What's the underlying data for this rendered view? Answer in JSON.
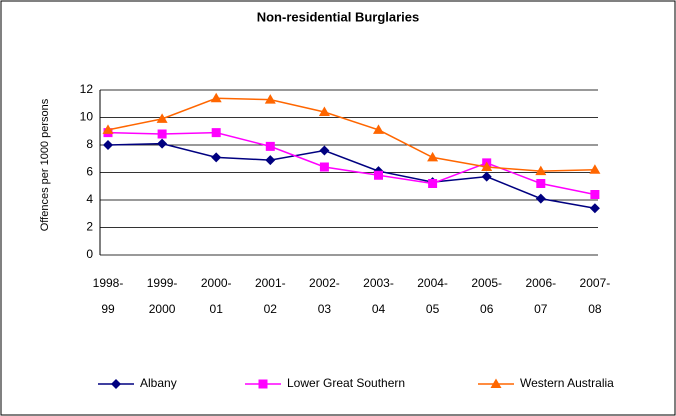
{
  "chart_data": {
    "type": "line",
    "title": "Non-residential Burglaries",
    "y_label": "Offences per 1000 persons",
    "categories": [
      [
        "1998-",
        "99"
      ],
      [
        "1999-",
        "2000"
      ],
      [
        "2000-",
        "01"
      ],
      [
        "2001-",
        "02"
      ],
      [
        "2002-",
        "03"
      ],
      [
        "2003-",
        "04"
      ],
      [
        "2004-",
        "05"
      ],
      [
        "2005-",
        "06"
      ],
      [
        "2006-",
        "07"
      ],
      [
        "2007-",
        "08"
      ]
    ],
    "series": [
      {
        "name": "Albany",
        "color": "#000080",
        "marker": "diamond",
        "values": [
          8.0,
          8.1,
          7.1,
          6.9,
          7.6,
          6.1,
          5.3,
          5.7,
          4.1,
          3.4
        ]
      },
      {
        "name": "Lower Great Southern",
        "color": "#ff00ff",
        "marker": "square",
        "values": [
          8.9,
          8.8,
          8.9,
          7.9,
          6.4,
          5.8,
          5.2,
          6.7,
          5.2,
          4.4
        ]
      },
      {
        "name": "Western Australia",
        "color": "#ff6600",
        "marker": "triangle",
        "values": [
          9.1,
          9.9,
          11.4,
          11.3,
          10.4,
          9.1,
          7.1,
          6.4,
          6.1,
          6.2
        ]
      }
    ],
    "ylim": [
      0,
      12
    ],
    "yticks": [
      0,
      2,
      4,
      6,
      8,
      10,
      12
    ],
    "grid": true,
    "legend": "bottom"
  }
}
